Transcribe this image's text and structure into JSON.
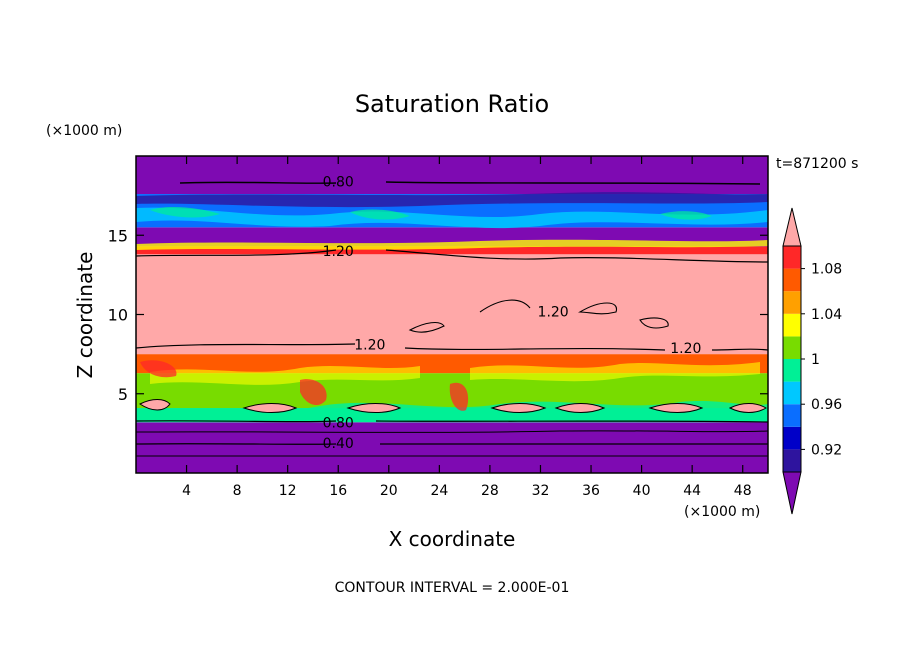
{
  "chart_data": {
    "type": "heatmap",
    "title": "Saturation Ratio",
    "xlabel": "X coordinate",
    "ylabel": "Z coordinate",
    "x_unit": "(×1000 m)",
    "y_unit": "(×1000 m)",
    "time_label": "t=871200 s",
    "footer": "CONTOUR INTERVAL = 2.000E-01",
    "xlim": [
      0,
      50
    ],
    "ylim": [
      0,
      20
    ],
    "x_ticks": [
      4,
      8,
      12,
      16,
      20,
      24,
      28,
      32,
      36,
      40,
      44,
      48
    ],
    "y_ticks": [
      5,
      10,
      15
    ],
    "colorbar": {
      "levels": [
        0.9,
        0.92,
        0.94,
        0.96,
        0.98,
        1.0,
        1.02,
        1.04,
        1.06,
        1.08,
        1.1
      ],
      "tick_labels": [
        "0.92",
        "0.96",
        "1",
        "1.04",
        "1.08"
      ],
      "tick_values": [
        0.92,
        0.96,
        1.0,
        1.04,
        1.08
      ],
      "colors": [
        "#7e0ab2",
        "#2e149e",
        "#0000c8",
        "#0a6eff",
        "#00c8ff",
        "#00f096",
        "#78dc00",
        "#ffff00",
        "#ffa000",
        "#ff5a00",
        "#ff2828",
        "#ffa8a8"
      ]
    },
    "bands": [
      {
        "z": [
          0.0,
          3.2
        ],
        "value": "<0.90",
        "color": "#7e0ab2"
      },
      {
        "z": [
          3.2,
          4.1
        ],
        "value": "0.97-1.00",
        "color": "#00f096"
      },
      {
        "z": [
          4.1,
          6.3
        ],
        "value": "0.98-1.02",
        "color": "#78dc00"
      },
      {
        "z": [
          6.3,
          7.5
        ],
        "value": "1.04-1.10",
        "color": "#ff5a00"
      },
      {
        "z": [
          7.5,
          13.8
        ],
        "value": ">1.10",
        "color": "#ffa8a8"
      },
      {
        "z": [
          13.8,
          14.3
        ],
        "value": "1.04-1.10",
        "color": "#ff2828"
      },
      {
        "z": [
          14.3,
          15.5
        ],
        "value": "<0.90",
        "color": "#7e0ab2"
      },
      {
        "z": [
          15.5,
          17.6
        ],
        "value": "0.92-1.00",
        "color": "#0a6eff"
      },
      {
        "z": [
          17.6,
          20.0
        ],
        "value": "<0.90",
        "color": "#7e0ab2"
      }
    ],
    "contour_labels": [
      {
        "text": "0.80",
        "x": 16.0,
        "z": 18.4
      },
      {
        "text": "1.20",
        "x": 16.0,
        "z": 14.0
      },
      {
        "text": "1.20",
        "x": 33.0,
        "z": 10.2
      },
      {
        "text": "1.20",
        "x": 18.5,
        "z": 8.1
      },
      {
        "text": "1.20",
        "x": 43.5,
        "z": 7.9
      },
      {
        "text": "0.80",
        "x": 16.0,
        "z": 3.2
      },
      {
        "text": "0.40",
        "x": 16.0,
        "z": 1.9
      }
    ]
  }
}
